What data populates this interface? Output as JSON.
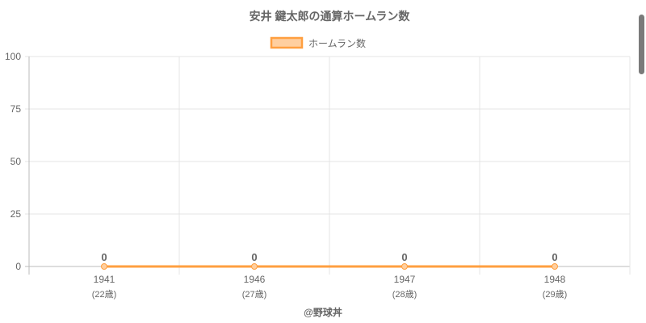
{
  "chart_data": {
    "type": "line",
    "title": "安井 鍵太郎の通算ホームラン数",
    "categories": [
      "1941",
      "1946",
      "1947",
      "1948"
    ],
    "sublabels": [
      "(22歳)",
      "(27歳)",
      "(28歳)",
      "(29歳)"
    ],
    "series": [
      {
        "name": "ホームラン数",
        "values": [
          0,
          0,
          0,
          0
        ]
      }
    ],
    "data_labels": [
      "0",
      "0",
      "0",
      "0"
    ],
    "ylim": [
      0,
      100
    ],
    "yticks": [
      "0",
      "25",
      "50",
      "75",
      "100"
    ],
    "grid": true,
    "legend": "top",
    "color": "#ff9f40",
    "fill": "#ffcf9f"
  },
  "credit": "@野球丼"
}
